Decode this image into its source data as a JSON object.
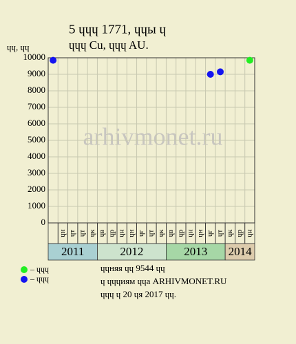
{
  "chart_data": {
    "type": "scatter",
    "title": "5 ɥɥɥ 1771, ɥɥы ɥ",
    "subtitle": "ɥɥɥ Cu, ɥɥɥ AU.",
    "y_label": "ɥɥ, ɥɥ",
    "watermark": "arhivmonet.ru",
    "years": [
      {
        "name": "2011",
        "color": "#a9d0d2",
        "months": [
          null,
          "ɥн",
          "ɥт",
          "ɥт",
          "ɥк"
        ]
      },
      {
        "name": "2012",
        "color": "#cde3cd",
        "months": [
          "ɥв",
          "ɥр",
          "ɥн",
          "ɥн",
          "ɥг",
          "ɥт",
          "ɥк"
        ]
      },
      {
        "name": "2013",
        "color": "#a6d7a6",
        "months": [
          "ɥв",
          "ɥр",
          "ɥн",
          "ɥн",
          "ɥг",
          "ɥт"
        ]
      },
      {
        "name": "2014",
        "color": "#dccbac",
        "months": [
          "ɥк",
          "ɥр",
          "ɥн"
        ]
      }
    ],
    "series": [
      {
        "name": "– ɥɥɥ",
        "color": "#22ee22",
        "values": [
          null,
          null,
          null,
          null,
          null,
          null,
          null,
          null,
          null,
          null,
          null,
          null,
          null,
          null,
          null,
          null,
          null,
          null,
          null,
          null,
          9850
        ]
      },
      {
        "name": "– ɥɥɥ",
        "color": "#1414f0",
        "values": [
          9850,
          null,
          null,
          null,
          null,
          null,
          null,
          null,
          null,
          null,
          null,
          null,
          null,
          null,
          null,
          null,
          9000,
          9150,
          null,
          null,
          null
        ]
      }
    ],
    "ylim": [
      0,
      10000
    ],
    "yticks": [
      0,
      1000,
      2000,
      3000,
      4000,
      5000,
      6000,
      7000,
      8000,
      9000,
      10000
    ],
    "grid": true,
    "notes": [
      "ɥɥняя ɥɥ 9544 ɥɥ",
      "ɥ ɥɥɥиям ɥɥа ARHIVMONET.RU",
      "ɥɥɥ ɥ 20 ɥя 2017 ɥɥ."
    ]
  }
}
